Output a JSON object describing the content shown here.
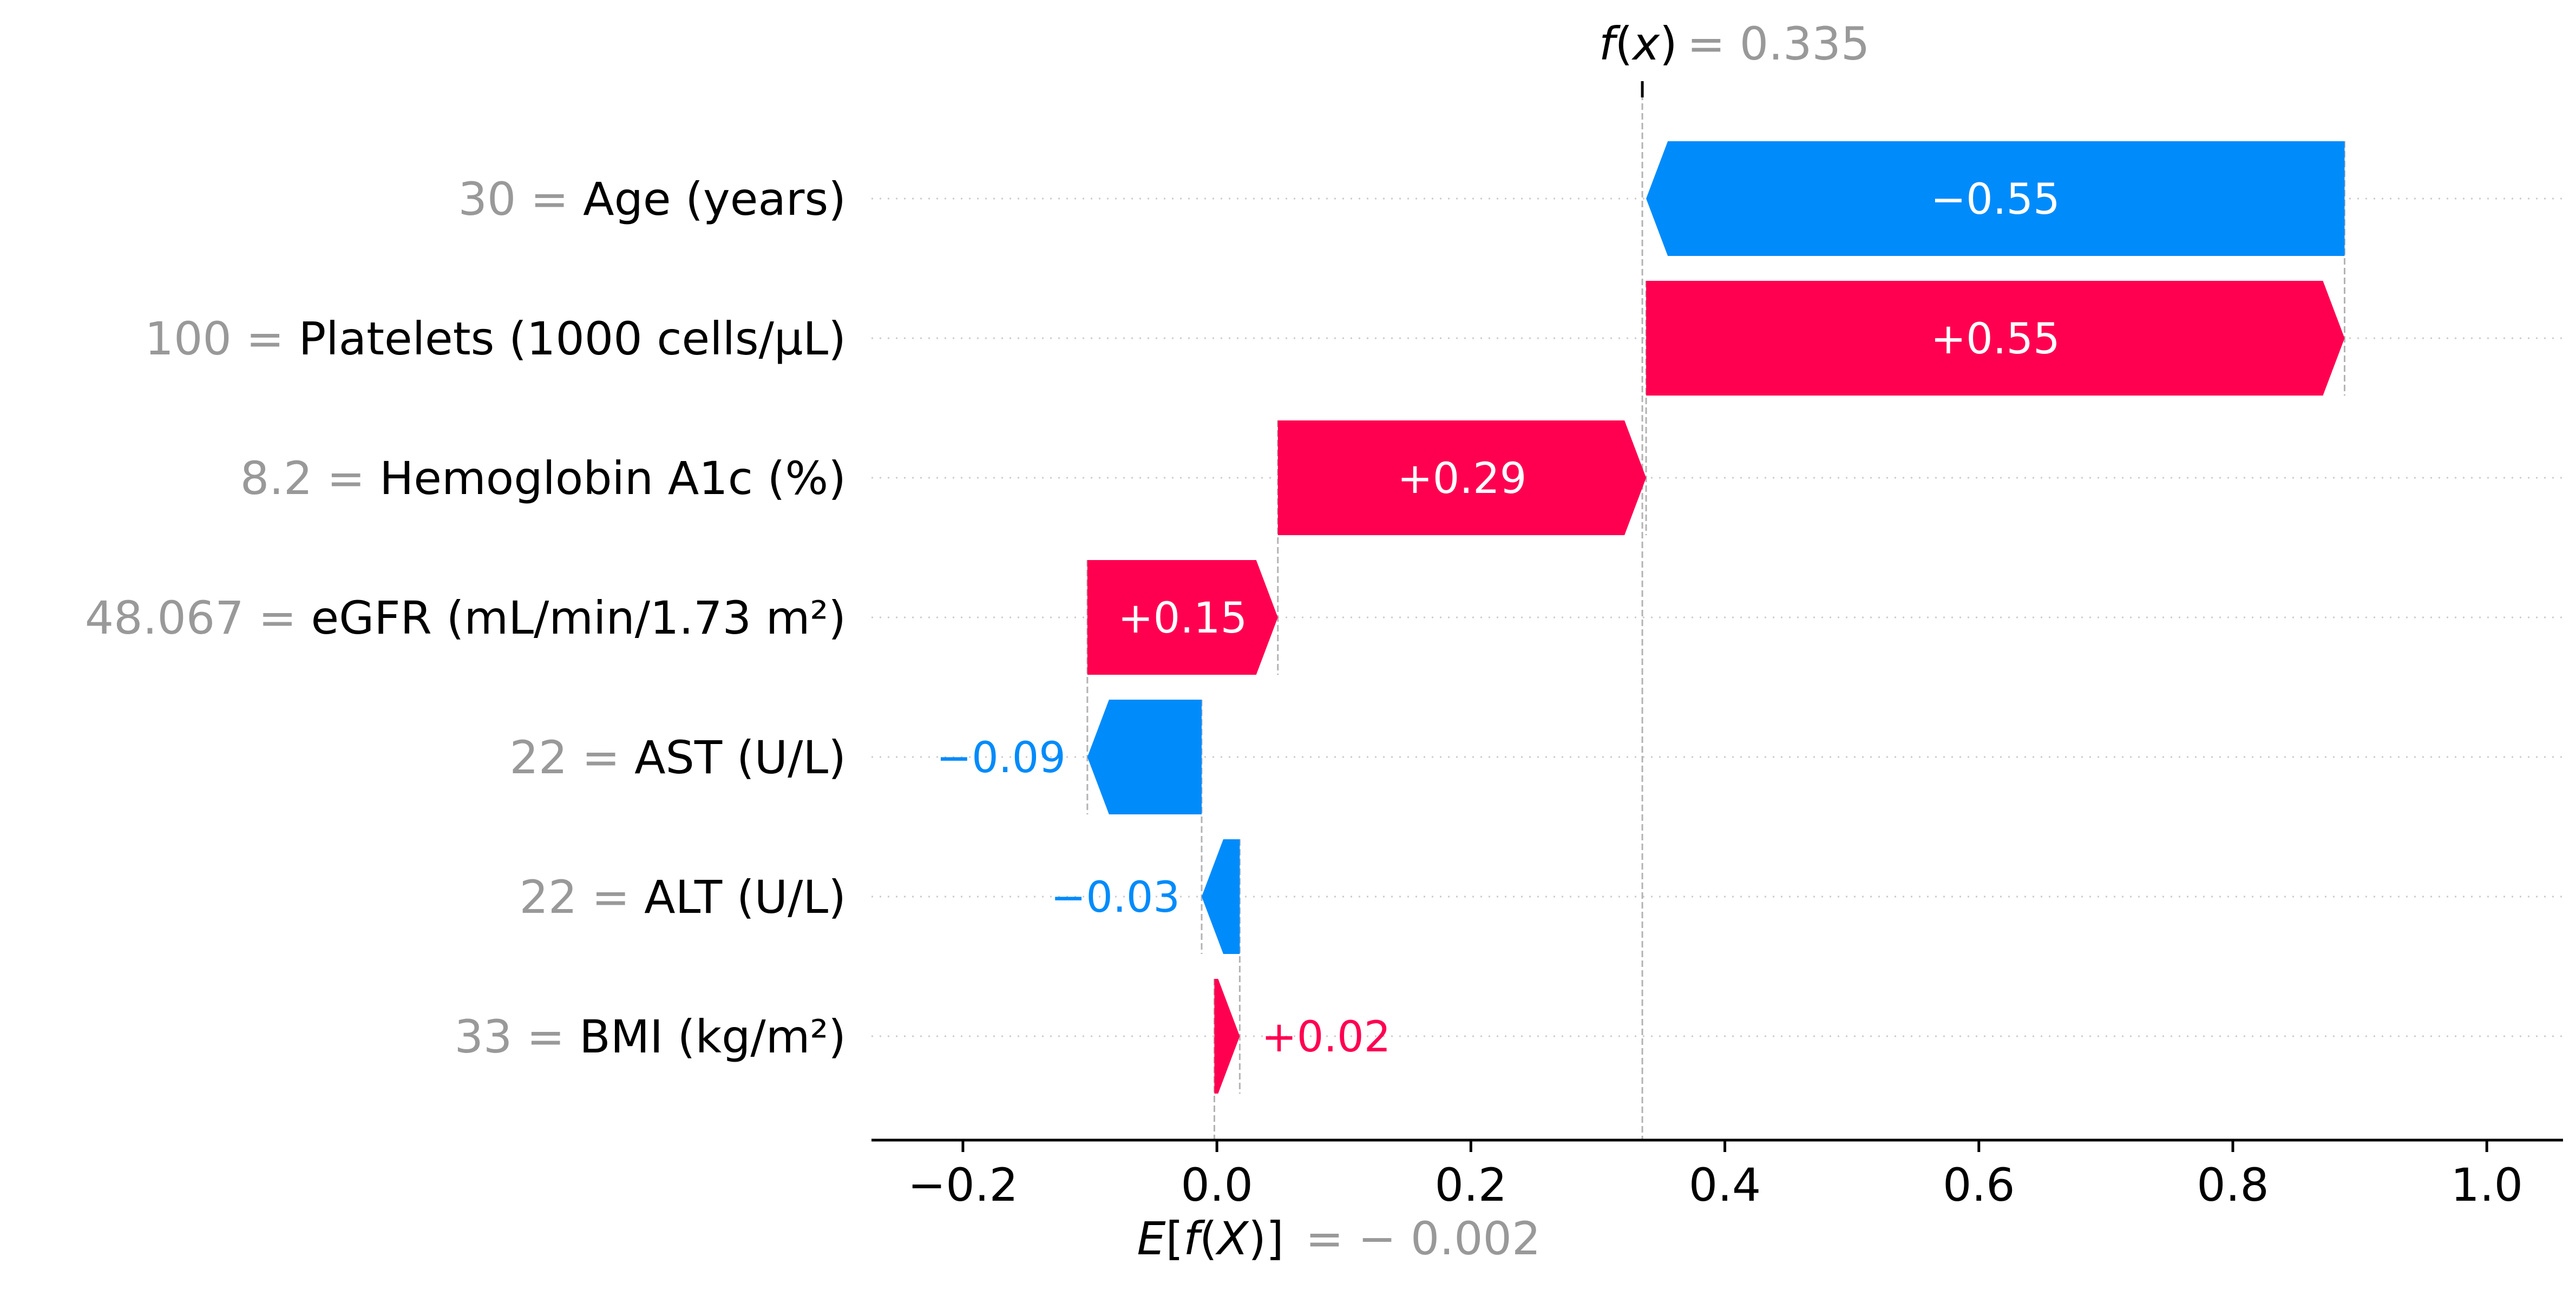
{
  "chart_data": {
    "type": "waterfall",
    "base_value": {
      "label_fx": "E[f(X)]",
      "value_text": "= − 0.002",
      "value": -0.002
    },
    "output_value": {
      "label_fx": "f(x)",
      "value_text": "= 0.335",
      "value": 0.335
    },
    "features": [
      {
        "value_text": "30 =",
        "name": "Age (years)",
        "shap": -0.55,
        "label": "−0.55"
      },
      {
        "value_text": "100 =",
        "name": "Platelets (1000 cells/μL)",
        "shap": 0.55,
        "label": "+0.55"
      },
      {
        "value_text": "8.2 =",
        "name": "Hemoglobin A1c (%)",
        "shap": 0.29,
        "label": "+0.29"
      },
      {
        "value_text": "48.067 =",
        "name": "eGFR (mL/min/1.73 m²)",
        "shap": 0.15,
        "label": "+0.15"
      },
      {
        "value_text": "22 =",
        "name": "AST (U/L)",
        "shap": -0.09,
        "label": "−0.09"
      },
      {
        "value_text": "22 =",
        "name": "ALT (U/L)",
        "shap": -0.03,
        "label": "−0.03"
      },
      {
        "value_text": "33 =",
        "name": "BMI (kg/m²)",
        "shap": 0.02,
        "label": "+0.02"
      }
    ],
    "x_ticks": [
      {
        "value": -0.2,
        "label": "−0.2"
      },
      {
        "value": 0.0,
        "label": "0.0"
      },
      {
        "value": 0.2,
        "label": "0.2"
      },
      {
        "value": 0.4,
        "label": "0.4"
      },
      {
        "value": 0.6,
        "label": "0.6"
      },
      {
        "value": 0.8,
        "label": "0.8"
      },
      {
        "value": 1.0,
        "label": "1.0"
      }
    ],
    "xlim": [
      -0.272,
      1.06
    ],
    "colors": {
      "positive": "#ff0051",
      "negative": "#008bfb",
      "value_gray": "#999999"
    }
  }
}
